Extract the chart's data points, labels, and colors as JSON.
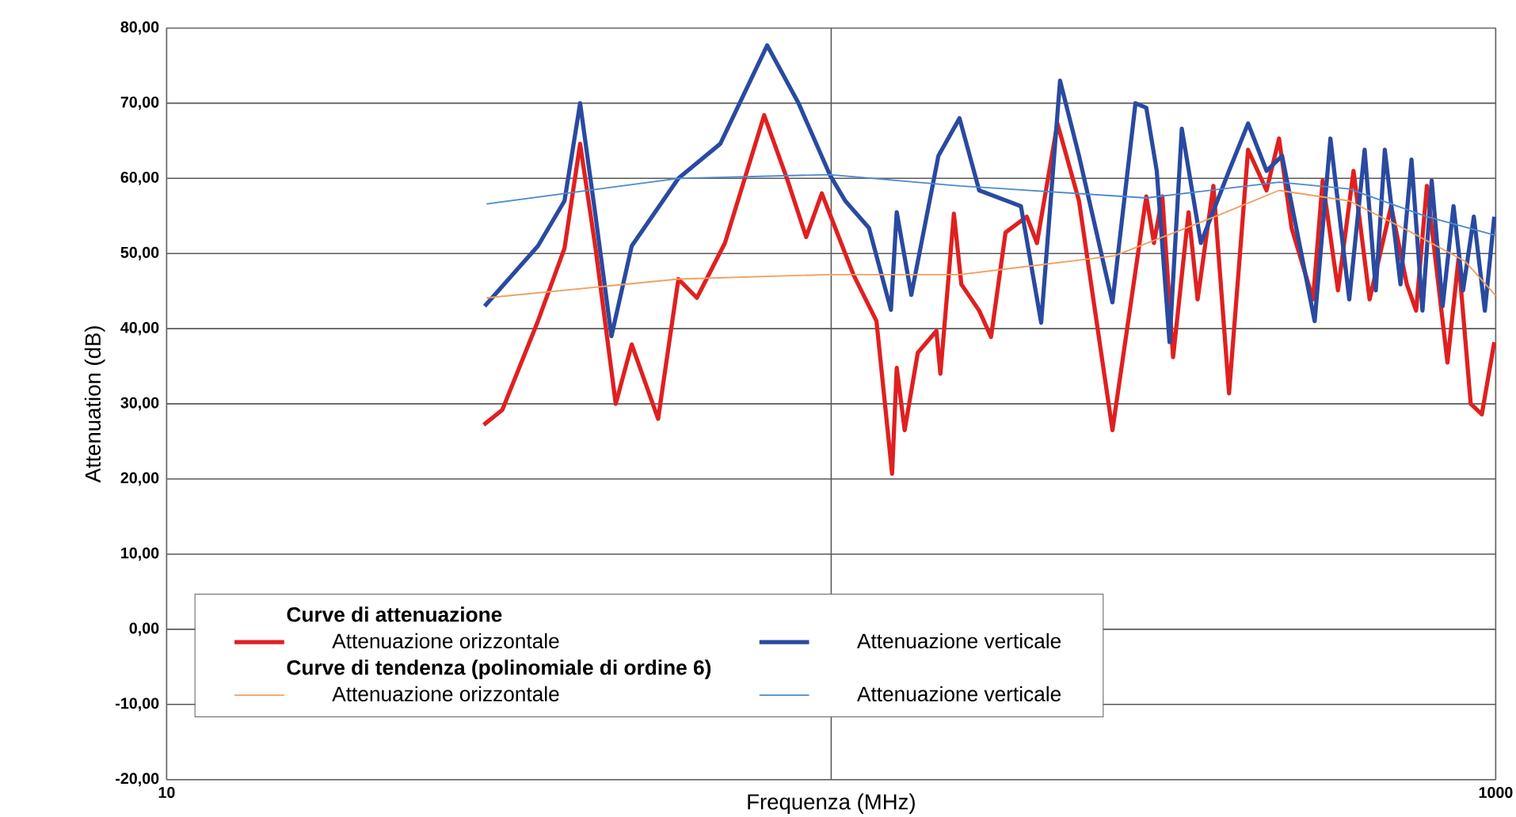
{
  "chart_data": {
    "type": "line",
    "xlabel": "Frequenza (MHz)",
    "ylabel": "Attenuation (dB)",
    "legend_title": "Curve di attenuazione",
    "annotations": [
      "Curve di tendenza (polinomiale di ordine 6)"
    ],
    "log": "x",
    "grid": true,
    "legend": "bottom left",
    "xlim": [
      10,
      1000
    ],
    "xticks": [
      10,
      {
        "value": 100,
        "label": null
      },
      1000
    ],
    "ylim": [
      -20,
      80
    ],
    "yticks": [
      {
        "value": -20,
        "label": "-20,00"
      },
      {
        "value": -10,
        "label": "-10,00"
      },
      {
        "value": 0,
        "label": "0,00"
      },
      {
        "value": 10,
        "label": "10,00"
      },
      {
        "value": 20,
        "label": "20,00"
      },
      {
        "value": 30,
        "label": "30,00"
      },
      {
        "value": 40,
        "label": "40,00"
      },
      {
        "value": 50,
        "label": "50,00"
      },
      {
        "value": 60,
        "label": "60,00"
      },
      {
        "value": 70,
        "label": "70,00"
      },
      {
        "value": 80,
        "label": "80,00"
      }
    ],
    "series": [
      {
        "name": "Attenuazione orizzontale",
        "color": "#e02020",
        "x": [
          30,
          32,
          36.2,
          39.7,
          41.9,
          44.2,
          47.4,
          50.1,
          54.9,
          58.9,
          62.8,
          69.2,
          79.3,
          86,
          91.7,
          96.8,
          108,
          117,
          123.5,
          125.5,
          129,
          135,
          144,
          146,
          153,
          157,
          167,
          174,
          183,
          197,
          204,
          219,
          236,
          265,
          298,
          306,
          315,
          327,
          345,
          356,
          376,
          397,
          424,
          452,
          472,
          493,
          531,
          549,
          579,
          611,
          646,
          696,
          735,
          759,
          788,
          846,
          879,
          917,
          953,
          995
        ],
        "values": [
          27.2,
          29.2,
          41,
          50.7,
          64.6,
          50.7,
          30,
          37.9,
          28,
          46.6,
          44.1,
          51.4,
          68.4,
          59.7,
          52.2,
          58,
          47.2,
          41,
          20.7,
          34.8,
          26.5,
          36.8,
          39.7,
          34,
          55.3,
          45.9,
          42.4,
          38.9,
          52.8,
          54.9,
          51.4,
          67.3,
          57,
          26.5,
          57.6,
          51.4,
          57.6,
          36.2,
          55.5,
          43.9,
          59,
          31.4,
          63.8,
          58.4,
          65.3,
          53.4,
          43.9,
          59.7,
          45.1,
          61,
          43.9,
          56.3,
          45.9,
          42.4,
          59,
          35.5,
          49.3,
          30,
          28.6,
          38.2
        ]
      },
      {
        "name": "Attenuazione verticale",
        "color": "#2a4aa0",
        "x": [
          30.1,
          36.2,
          39.7,
          41.9,
          44.2,
          46.7,
          50.1,
          58.9,
          68.1,
          80.1,
          89.3,
          99.5,
          105,
          114,
          123,
          125.5,
          132,
          145,
          156,
          167,
          193,
          207,
          221,
          236,
          265,
          287,
          298,
          309,
          323,
          337,
          360,
          397,
          424,
          452,
          477,
          534,
          564,
          602,
          635,
          660,
          681,
          719,
          747,
          776,
          801,
          832,
          864,
          893,
          927,
          963,
          995
        ],
        "values": [
          43,
          51,
          57,
          70,
          55,
          39,
          51,
          60,
          64.6,
          77.7,
          70,
          60.5,
          57,
          53.4,
          42.5,
          55.5,
          44.5,
          63,
          68,
          58.4,
          56.3,
          40.8,
          73,
          63,
          43.5,
          70,
          69.4,
          61,
          38.2,
          66.6,
          51.4,
          61,
          67.3,
          61,
          63,
          41,
          65.3,
          43.9,
          63.8,
          45.1,
          63.8,
          45.9,
          62.5,
          42.4,
          59.7,
          43,
          56.3,
          45.1,
          54.9,
          42.4,
          54.9
        ]
      },
      {
        "name": "Attenuazione orizzontale",
        "color": "#f0a060",
        "x": [
          30.3,
          58.9,
          99.5,
          156,
          267,
          378,
          472,
          602,
          747,
          898,
          1000
        ],
        "values": [
          44.1,
          46.6,
          47.2,
          47.2,
          49.7,
          54.9,
          58.4,
          57,
          52.8,
          49,
          44.4
        ]
      },
      {
        "name": "Attenuazione verticale",
        "color": "#4a8ad0",
        "x": [
          30.3,
          58.9,
          99.5,
          156,
          298,
          472,
          602,
          788,
          1000
        ],
        "values": [
          56.6,
          60,
          60.5,
          59,
          57.4,
          59.5,
          58.6,
          54.9,
          52.4
        ]
      }
    ]
  }
}
